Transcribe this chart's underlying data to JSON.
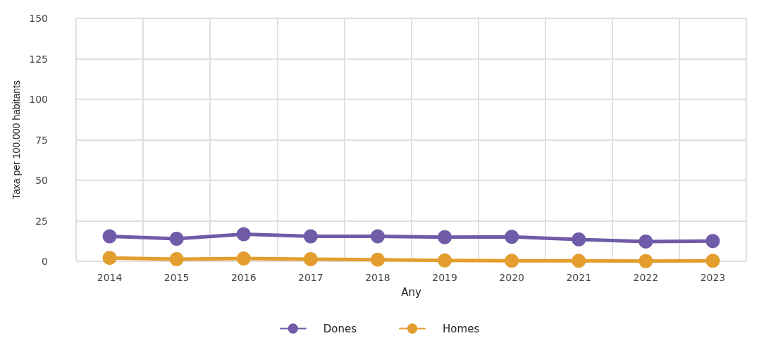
{
  "chart_data": {
    "type": "line",
    "xlabel": "Any",
    "ylabel": "Taxa per 100.000 habitants",
    "categories": [
      "2014",
      "2015",
      "2016",
      "2017",
      "2018",
      "2019",
      "2020",
      "2021",
      "2022",
      "2023"
    ],
    "series": [
      {
        "name": "Dones",
        "color": "#6f5ba7",
        "values": [
          15.4,
          13.9,
          16.7,
          15.4,
          15.4,
          14.9,
          15.1,
          13.5,
          12.2,
          12.5
        ]
      },
      {
        "name": "Homes",
        "color": "#e39e2f",
        "values": [
          2.1,
          1.3,
          1.7,
          1.3,
          1.0,
          0.5,
          0.3,
          0.3,
          0.1,
          0.3
        ]
      }
    ],
    "ylim": [
      0,
      150
    ],
    "yticks": [
      0,
      25,
      50,
      75,
      100,
      125,
      150
    ],
    "grid": true,
    "legend": "bottom",
    "marker": "circle",
    "line_style": "solid"
  }
}
